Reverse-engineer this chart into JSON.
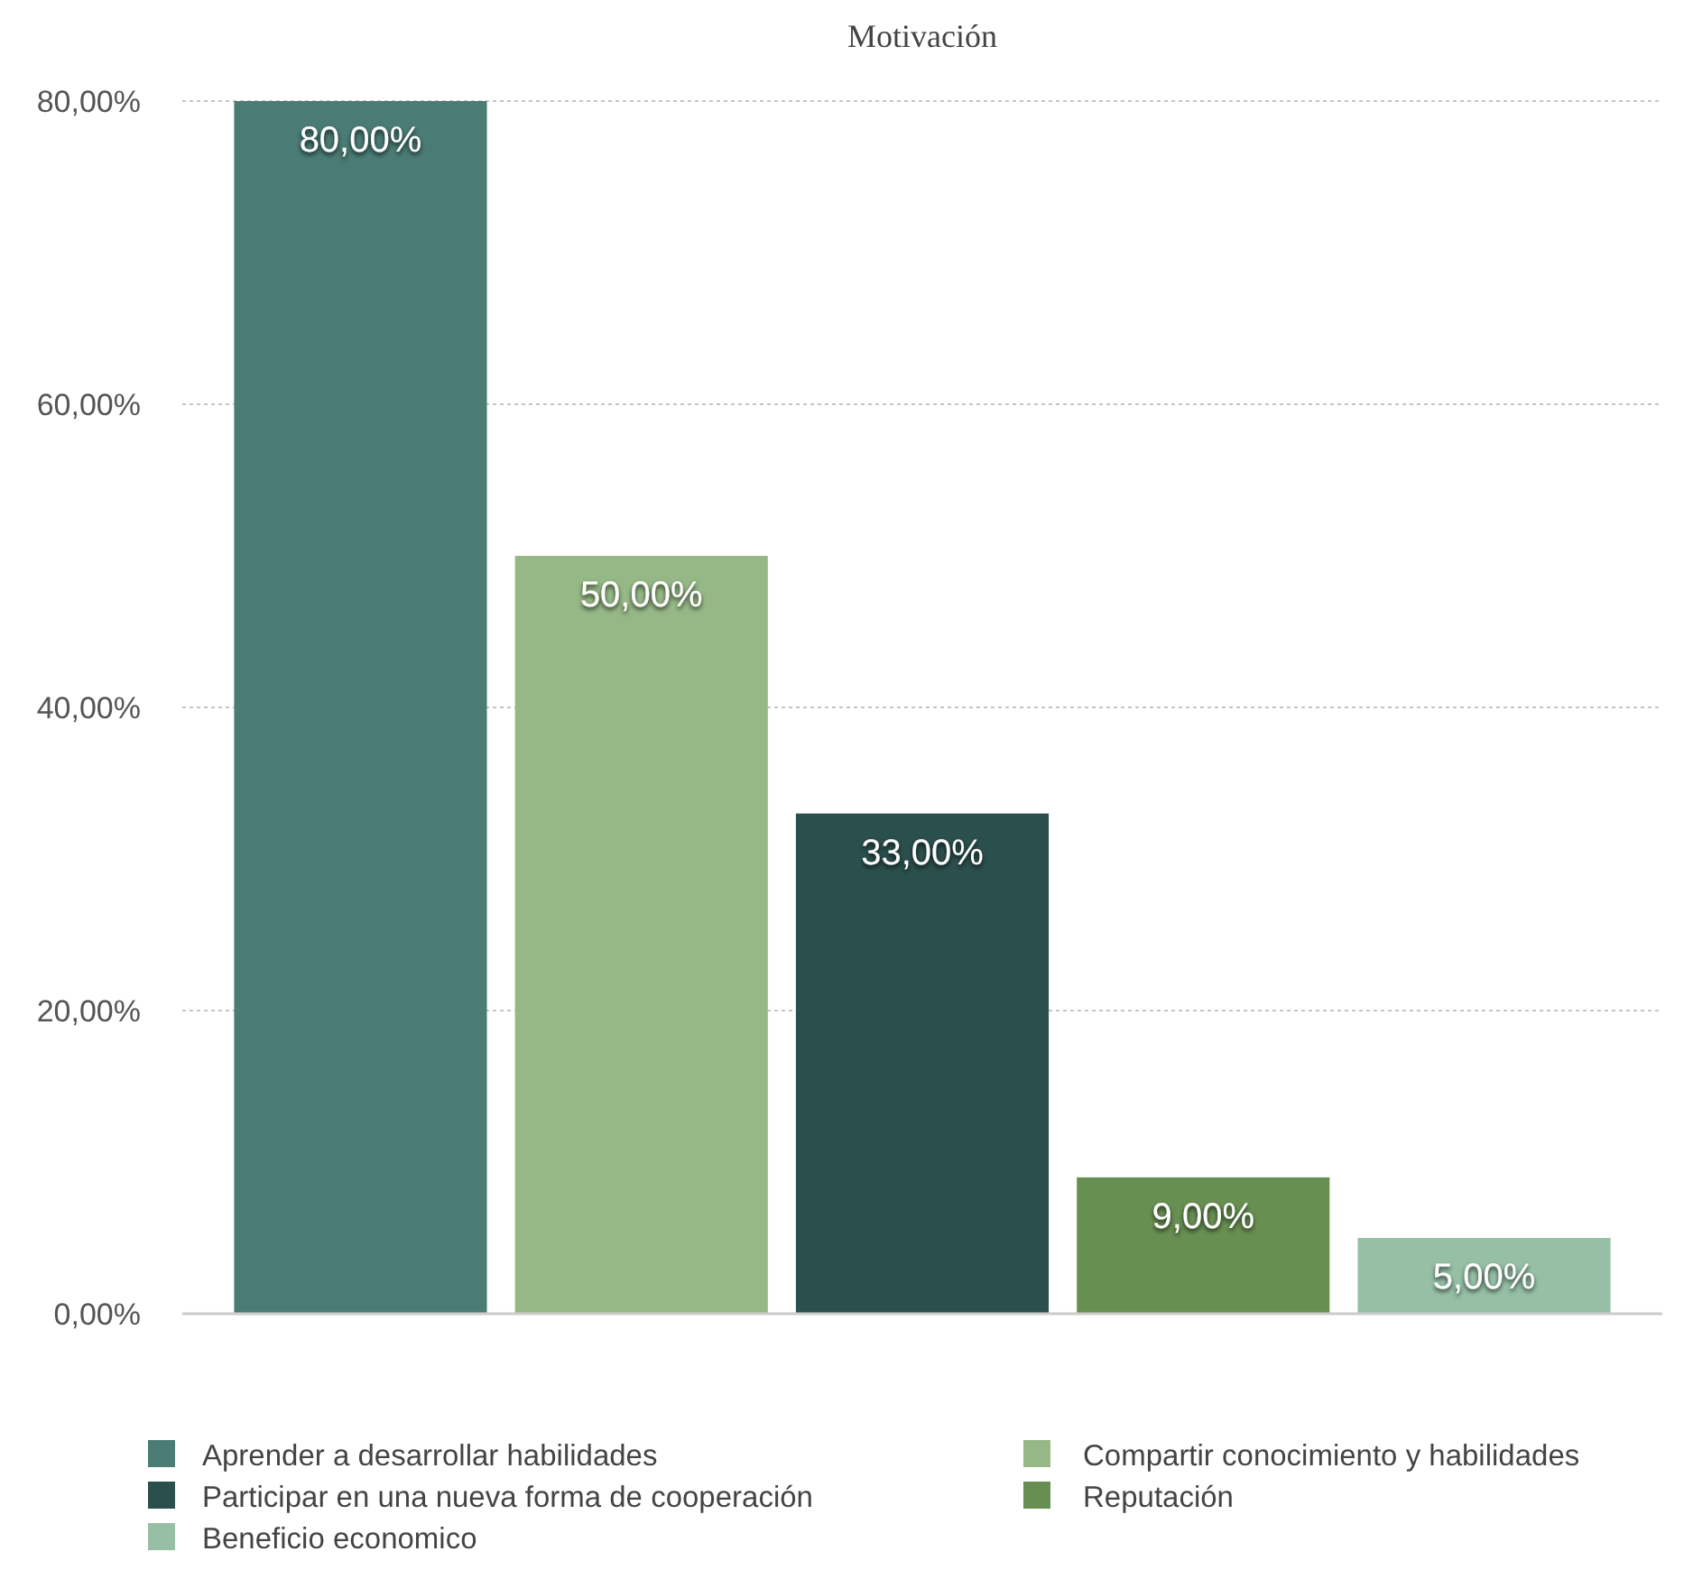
{
  "chart_data": {
    "type": "bar",
    "title": "Motivación",
    "categories": [
      null
    ],
    "series": [
      {
        "name": "Aprender a desarrollar habilidades",
        "color": "#4a7b74",
        "values": [
          80
        ],
        "value_labels": [
          "80,00%"
        ]
      },
      {
        "name": "Compartir conocimiento y habilidades",
        "color": "#96b886",
        "values": [
          50
        ],
        "value_labels": [
          "50,00%"
        ]
      },
      {
        "name": "Participar en una nueva forma de cooperación",
        "color": "#2b4f4c",
        "values": [
          33
        ],
        "value_labels": [
          "33,00%"
        ]
      },
      {
        "name": "Reputación",
        "color": "#688f52",
        "values": [
          9
        ],
        "value_labels": [
          "9,00%"
        ]
      },
      {
        "name": "Beneficio economico",
        "color": "#96bfa6",
        "values": [
          5
        ],
        "value_labels": [
          "5,00%"
        ]
      }
    ],
    "ylim": [
      0,
      80
    ],
    "yticks": [
      {
        "value": 0,
        "label": "0,00%"
      },
      {
        "value": 20,
        "label": "20,00%"
      },
      {
        "value": 40,
        "label": "40,00%"
      },
      {
        "value": 60,
        "label": "60,00%"
      },
      {
        "value": 80,
        "label": "80,00%"
      }
    ],
    "grid": "y",
    "legend": "bottom"
  }
}
